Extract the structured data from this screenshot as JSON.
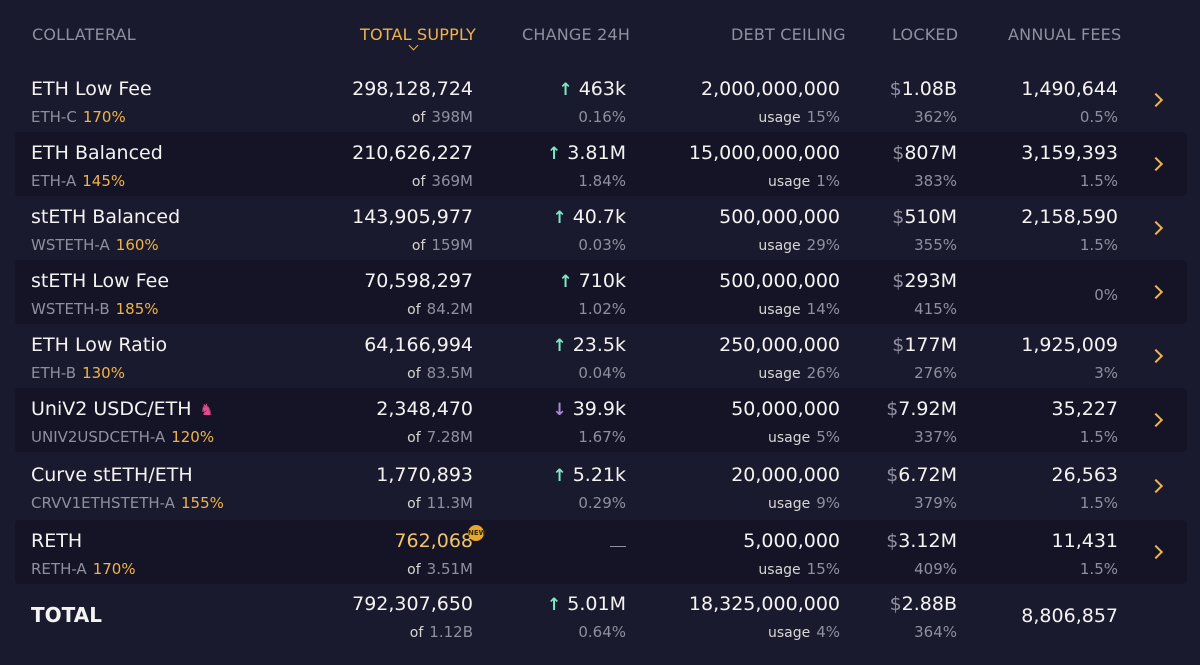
{
  "header": {
    "collateral": "COLLATERAL",
    "total_supply": "TOTAL SUPPLY",
    "change_24h": "CHANGE 24H",
    "debt_ceiling": "DEBT CEILING",
    "locked": "LOCKED",
    "annual_fees": "ANNUAL FEES"
  },
  "labels": {
    "of": "of",
    "usage": "usage",
    "dollar": "$",
    "dash": "—"
  },
  "colors": {
    "accent": "#f0b34b",
    "up": "#7ce8c5",
    "down": "#a88ad8",
    "background": "#1a1a2e"
  },
  "rows": [
    {
      "name": "ETH Low Fee",
      "ilk": "ETH-C",
      "ratio": "170%",
      "supply": "298,128,724",
      "supply_max": "398M",
      "change": "463k",
      "change_dir": "up",
      "change_pct": "0.16%",
      "ceiling": "2,000,000,000",
      "usage": "15%",
      "locked": "1.08B",
      "locked_pct": "362%",
      "fees": "1,490,644",
      "fee_rate": "0.5%"
    },
    {
      "name": "ETH Balanced",
      "ilk": "ETH-A",
      "ratio": "145%",
      "supply": "210,626,227",
      "supply_max": "369M",
      "change": "3.81M",
      "change_dir": "up",
      "change_pct": "1.84%",
      "ceiling": "15,000,000,000",
      "usage": "1%",
      "locked": "807M",
      "locked_pct": "383%",
      "fees": "3,159,393",
      "fee_rate": "1.5%"
    },
    {
      "name": "stETH Balanced",
      "ilk": "WSTETH-A",
      "ratio": "160%",
      "supply": "143,905,977",
      "supply_max": "159M",
      "change": "40.7k",
      "change_dir": "up",
      "change_pct": "0.03%",
      "ceiling": "500,000,000",
      "usage": "29%",
      "locked": "510M",
      "locked_pct": "355%",
      "fees": "2,158,590",
      "fee_rate": "1.5%"
    },
    {
      "name": "stETH Low Fee",
      "ilk": "WSTETH-B",
      "ratio": "185%",
      "supply": "70,598,297",
      "supply_max": "84.2M",
      "change": "710k",
      "change_dir": "up",
      "change_pct": "1.02%",
      "ceiling": "500,000,000",
      "usage": "14%",
      "locked": "293M",
      "locked_pct": "415%",
      "fees": "",
      "fee_rate": "0%"
    },
    {
      "name": "ETH Low Ratio",
      "ilk": "ETH-B",
      "ratio": "130%",
      "supply": "64,166,994",
      "supply_max": "83.5M",
      "change": "23.5k",
      "change_dir": "up",
      "change_pct": "0.04%",
      "ceiling": "250,000,000",
      "usage": "26%",
      "locked": "177M",
      "locked_pct": "276%",
      "fees": "1,925,009",
      "fee_rate": "3%"
    },
    {
      "name": "UniV2 USDC/ETH",
      "ilk": "UNIV2USDCETH-A",
      "ratio": "120%",
      "supply": "2,348,470",
      "supply_max": "7.28M",
      "change": "39.9k",
      "change_dir": "down",
      "change_pct": "1.67%",
      "ceiling": "50,000,000",
      "usage": "5%",
      "locked": "7.92M",
      "locked_pct": "337%",
      "fees": "35,227",
      "fee_rate": "1.5%",
      "icon": "unicorn-icon"
    },
    {
      "name": "Curve stETH/ETH",
      "ilk": "CRVV1ETHSTETH-A",
      "ratio": "155%",
      "supply": "1,770,893",
      "supply_max": "11.3M",
      "change": "5.21k",
      "change_dir": "up",
      "change_pct": "0.29%",
      "ceiling": "20,000,000",
      "usage": "9%",
      "locked": "6.72M",
      "locked_pct": "379%",
      "fees": "26,563",
      "fee_rate": "1.5%"
    },
    {
      "name": "RETH",
      "ilk": "RETH-A",
      "ratio": "170%",
      "supply": "762,068",
      "supply_max": "3.51M",
      "change": "",
      "change_dir": "none",
      "change_pct": "",
      "ceiling": "5,000,000",
      "usage": "15%",
      "locked": "3.12M",
      "locked_pct": "409%",
      "fees": "11,431",
      "fee_rate": "1.5%",
      "badge": "NEW"
    }
  ],
  "total": {
    "label": "TOTAL",
    "supply": "792,307,650",
    "supply_max": "1.12B",
    "change": "5.01M",
    "change_pct": "0.64%",
    "ceiling": "18,325,000,000",
    "usage": "4%",
    "locked": "2.88B",
    "locked_pct": "364%",
    "fees": "8,806,857"
  }
}
